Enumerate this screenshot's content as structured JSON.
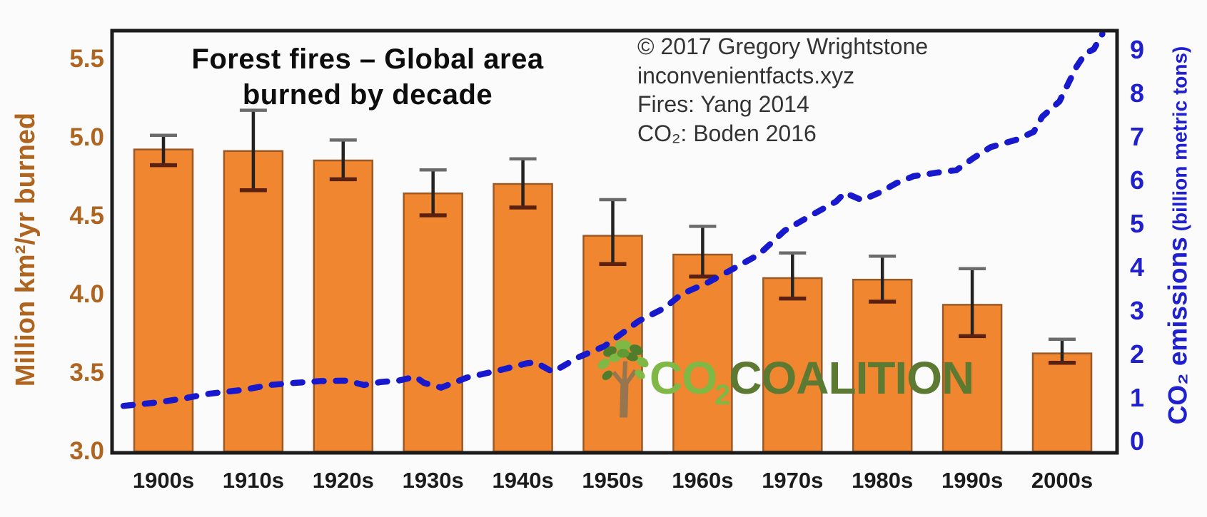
{
  "title": {
    "line1": "Forest fires – Global area",
    "line2": "burned by decade"
  },
  "attribution": {
    "lines": [
      "© 2017 Gregory Wrightstone",
      "inconvenientfacts.xyz",
      "Fires: Yang 2014",
      "CO₂: Boden 2016"
    ]
  },
  "logo": {
    "co": "CO",
    "sub": "2",
    "coalition": "COALITION",
    "tree_icon": "tree-icon",
    "color_light_green": "#7FB845",
    "color_olive": "#5C7A31"
  },
  "chart_data": {
    "type": "bar+line",
    "categories": [
      "1900s",
      "1910s",
      "1920s",
      "1930s",
      "1940s",
      "1950s",
      "1960s",
      "1970s",
      "1980s",
      "1990s",
      "2000s"
    ],
    "bar_series": {
      "name": "Global area burned",
      "unit": "million km²/yr",
      "axis": "left",
      "color": "#F0862F",
      "border_color": "#9A5A28",
      "values": [
        4.92,
        4.91,
        4.85,
        4.64,
        4.7,
        4.37,
        4.25,
        4.1,
        4.09,
        3.93,
        3.62
      ],
      "err_low": [
        4.82,
        4.66,
        4.73,
        4.5,
        4.55,
        4.19,
        4.11,
        3.97,
        3.95,
        3.73,
        3.56
      ],
      "err_high": [
        5.01,
        5.17,
        4.98,
        4.79,
        4.86,
        4.6,
        4.43,
        4.26,
        4.24,
        4.16,
        3.71
      ]
    },
    "line_series": {
      "name": "CO₂ emissions",
      "unit": "billion metric tons",
      "axis": "right",
      "color": "#1818CC",
      "style": "dashed",
      "points": [
        [
          1900,
          0.8
        ],
        [
          1904,
          0.88
        ],
        [
          1907,
          0.97
        ],
        [
          1910,
          1.08
        ],
        [
          1914,
          1.17
        ],
        [
          1917,
          1.28
        ],
        [
          1920,
          1.33
        ],
        [
          1923,
          1.37
        ],
        [
          1926,
          1.38
        ],
        [
          1928,
          1.28
        ],
        [
          1930,
          1.35
        ],
        [
          1932,
          1.38
        ],
        [
          1934,
          1.47
        ],
        [
          1935,
          1.33
        ],
        [
          1937,
          1.22
        ],
        [
          1940,
          1.45
        ],
        [
          1944,
          1.63
        ],
        [
          1947,
          1.78
        ],
        [
          1948,
          1.8
        ],
        [
          1950,
          1.58
        ],
        [
          1953,
          1.92
        ],
        [
          1956,
          2.17
        ],
        [
          1960,
          2.75
        ],
        [
          1963,
          3.05
        ],
        [
          1965,
          3.37
        ],
        [
          1968,
          3.63
        ],
        [
          1971,
          3.95
        ],
        [
          1974,
          4.28
        ],
        [
          1977,
          4.83
        ],
        [
          1980,
          5.17
        ],
        [
          1983,
          5.5
        ],
        [
          1984,
          5.7
        ],
        [
          1986,
          5.53
        ],
        [
          1988,
          5.7
        ],
        [
          1990,
          5.92
        ],
        [
          1992,
          6.08
        ],
        [
          1995,
          6.17
        ],
        [
          1997,
          6.22
        ],
        [
          1999,
          6.5
        ],
        [
          2001,
          6.75
        ],
        [
          2004,
          6.92
        ],
        [
          2006,
          7.1
        ],
        [
          2007,
          7.45
        ],
        [
          2009,
          7.8
        ],
        [
          2010,
          8.2
        ],
        [
          2011,
          8.6
        ],
        [
          2012,
          8.9
        ],
        [
          2013,
          9.0
        ],
        [
          2014,
          9.35
        ]
      ]
    },
    "left_axis": {
      "title": "Million km²/yr burned",
      "ticks": [
        3.0,
        3.5,
        4.0,
        4.5,
        5.0,
        5.5
      ],
      "range": [
        3.0,
        5.68
      ],
      "color": "#AF6420"
    },
    "right_axis": {
      "title": "CO₂ emissions",
      "title_suffix": " (billion metric tons)",
      "ticks": [
        0,
        1,
        2,
        3,
        4,
        5,
        6,
        7,
        8,
        9
      ],
      "range": [
        -0.28,
        9.39
      ],
      "color": "#2020CE"
    },
    "grid": false,
    "legend": "none"
  }
}
